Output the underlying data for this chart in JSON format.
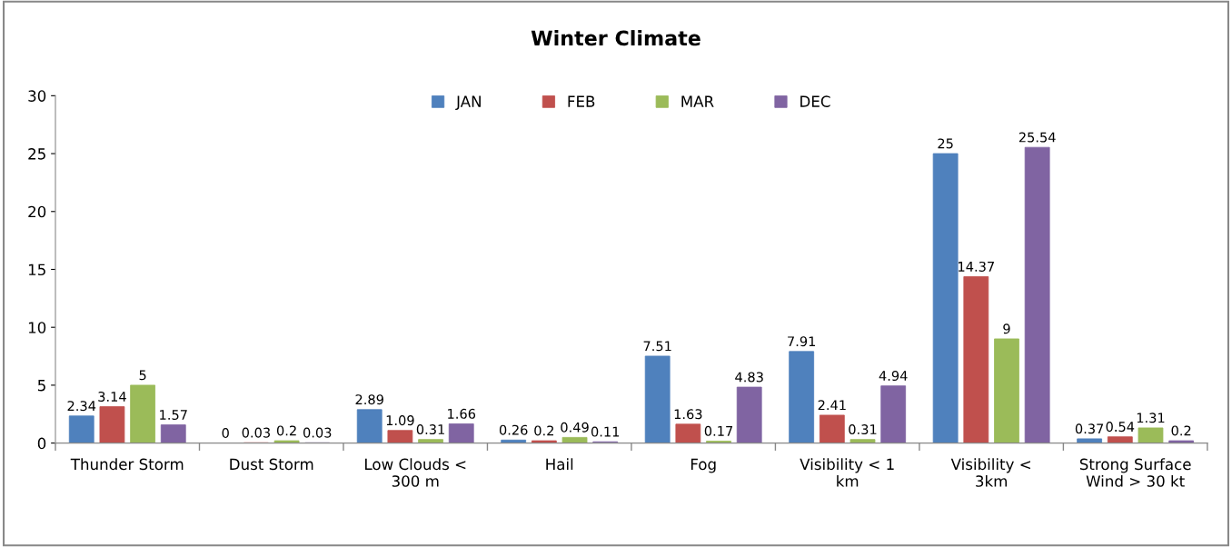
{
  "chart_data": {
    "type": "bar",
    "title": "Winter Climate",
    "categories": [
      "Thunder Storm",
      "Dust Storm",
      "Low Clouds <\n300 m",
      "Hail",
      "Fog",
      "Visibility < 1\nkm",
      "Visibility <\n3km",
      "Strong Surface\nWind > 30 kt"
    ],
    "series": [
      {
        "name": "JAN",
        "color": "#4f81bd",
        "values": [
          2.34,
          0,
          2.89,
          0.26,
          7.51,
          7.91,
          25,
          0.37
        ]
      },
      {
        "name": "FEB",
        "color": "#c0504d",
        "values": [
          3.14,
          0.03,
          1.09,
          0.2,
          1.63,
          2.41,
          14.37,
          0.54
        ]
      },
      {
        "name": "MAR",
        "color": "#9bbb59",
        "values": [
          5,
          0.2,
          0.31,
          0.49,
          0.17,
          0.31,
          9,
          1.31
        ]
      },
      {
        "name": "DEC",
        "color": "#8064a2",
        "values": [
          1.57,
          0.03,
          1.66,
          0.11,
          4.83,
          4.94,
          25.54,
          0.2
        ]
      }
    ],
    "ylim": [
      0,
      30
    ],
    "yticks": [
      0,
      5,
      10,
      15,
      20,
      25,
      30
    ],
    "grid": false,
    "legend": "top",
    "data_labels": true
  }
}
